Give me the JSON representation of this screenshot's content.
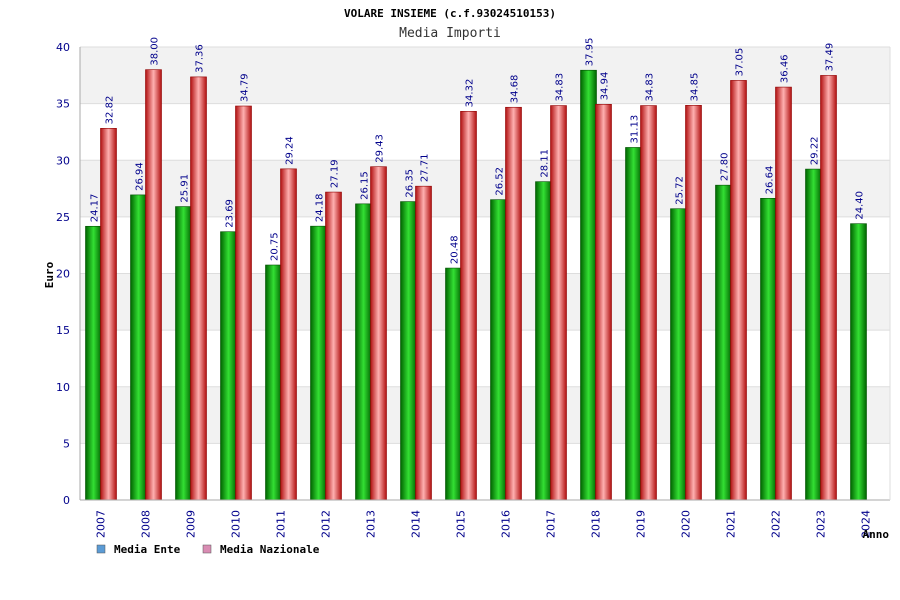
{
  "chart_data": {
    "type": "bar",
    "title": "VOLARE INSIEME (c.f.93024510153)",
    "subtitle": "Media Importi",
    "xlabel": "Anno",
    "ylabel": "Euro",
    "ylim": [
      0,
      40
    ],
    "yticks": [
      "0",
      "5",
      "10",
      "15",
      "20",
      "25",
      "30",
      "35",
      "40"
    ],
    "categories": [
      "2007",
      "2008",
      "2009",
      "2010",
      "2011",
      "2012",
      "2013",
      "2014",
      "2015",
      "2016",
      "2017",
      "2018",
      "2019",
      "2020",
      "2021",
      "2022",
      "2023",
      "2024"
    ],
    "series": [
      {
        "name": "Media Ente",
        "values": [
          24.17,
          26.94,
          25.91,
          23.69,
          20.75,
          24.18,
          26.15,
          26.35,
          20.48,
          26.52,
          28.11,
          37.95,
          31.13,
          25.72,
          27.8,
          26.64,
          29.22,
          24.4
        ],
        "labels": [
          "24.17",
          "26.94",
          "25.91",
          "23.69",
          "20.75",
          "24.18",
          "26.15",
          "26.35",
          "20.48",
          "26.52",
          "28.11",
          "37.95",
          "31.13",
          "25.72",
          "27.80",
          "26.64",
          "29.22",
          "24.40"
        ]
      },
      {
        "name": "Media Nazionale",
        "values": [
          32.82,
          38.0,
          37.36,
          34.79,
          29.24,
          27.19,
          29.43,
          27.71,
          34.32,
          34.68,
          34.83,
          34.94,
          34.83,
          34.85,
          37.05,
          36.46,
          37.49,
          null
        ],
        "labels": [
          "32.82",
          "38.00",
          "37.36",
          "34.79",
          "29.24",
          "27.19",
          "29.43",
          "27.71",
          "34.32",
          "34.68",
          "34.83",
          "34.94",
          "34.83",
          "34.85",
          "37.05",
          "36.46",
          "37.49",
          ""
        ]
      }
    ],
    "legend_position": "bottom-left",
    "grid": true,
    "colors": {
      "ente": "#00a000",
      "nazionale": "#e83030",
      "legend_ente": "#5b9bd5",
      "legend_nazionale": "#d98cb3",
      "band": "#f2f2f2",
      "axis_text": "#00008b"
    }
  }
}
